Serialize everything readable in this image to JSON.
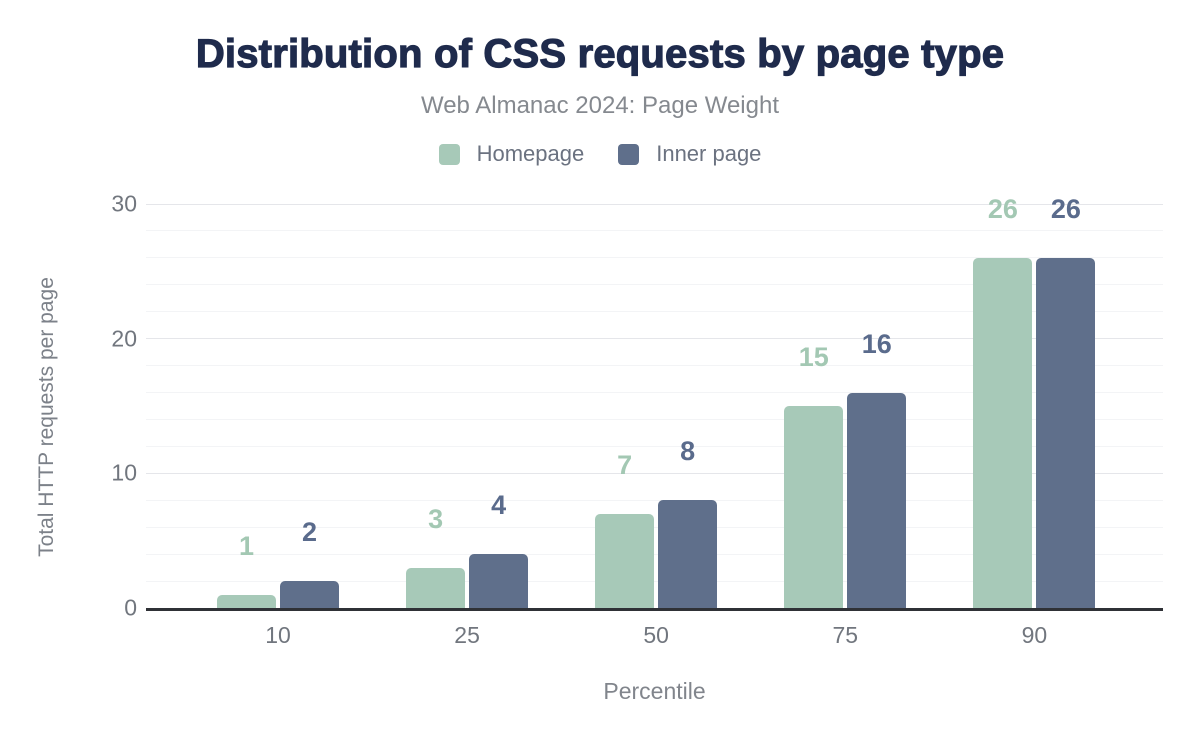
{
  "title": "Distribution of CSS requests by page type",
  "subtitle": "Web Almanac 2024: Page Weight",
  "colors": {
    "title": "#1f2b4c",
    "subtitle": "#85898f",
    "axis_text": "#71767e",
    "axis_line": "#2f3136",
    "gridline_minor": "#f3f4f6",
    "gridline_major": "#e5e6ea",
    "homepage": "#a7c9b8",
    "inner_page": "#5f6f8b",
    "homepage_label": "#a3c8b3",
    "inner_page_label": "#5a6b8c"
  },
  "chart_data": {
    "type": "bar",
    "title": "Distribution of CSS requests by page type",
    "subtitle": "Web Almanac 2024: Page Weight",
    "categories": [
      "10",
      "25",
      "50",
      "75",
      "90"
    ],
    "series": [
      {
        "name": "Homepage",
        "values": [
          1,
          3,
          7,
          15,
          26
        ],
        "color": "#a7c9b8",
        "label_color": "#a3c8b3"
      },
      {
        "name": "Inner page",
        "values": [
          2,
          4,
          8,
          16,
          26
        ],
        "color": "#5f6f8b",
        "label_color": "#5a6b8c"
      }
    ],
    "xlabel": "Percentile",
    "ylabel": "Total HTTP requests per page",
    "ylim": [
      0,
      30
    ],
    "yticks": [
      0,
      10,
      20,
      30
    ],
    "minor_grid_step": 2,
    "major_grid_step": 10,
    "grid": true,
    "legend_position": "top",
    "bar_labels": true
  }
}
